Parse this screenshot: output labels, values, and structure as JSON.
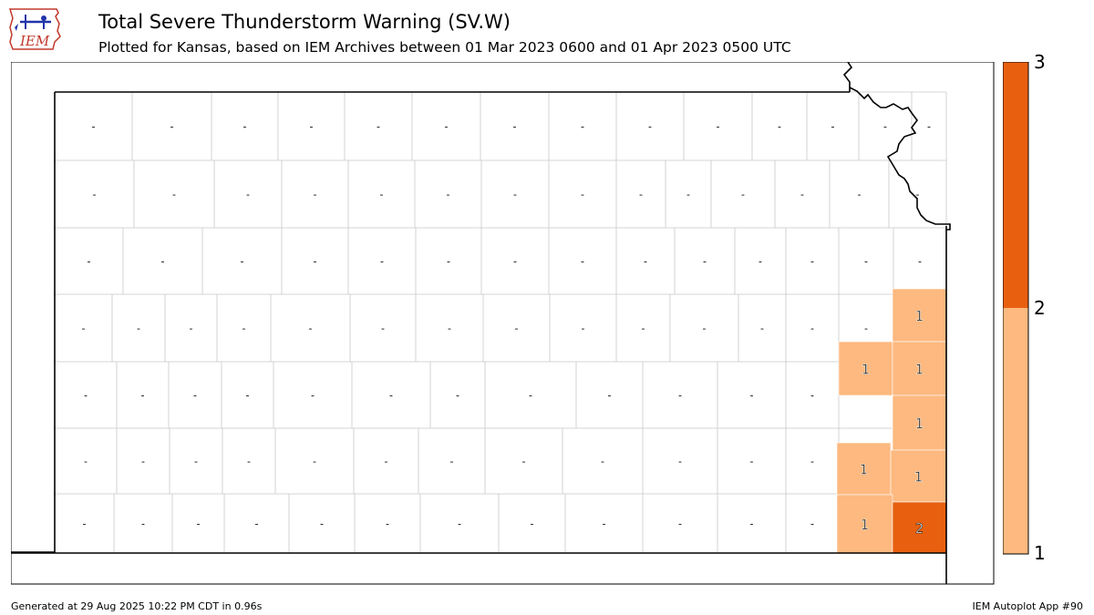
{
  "header": {
    "logo_text": "IEM",
    "title": "Total Severe Thunderstorm Warning (SV.W)",
    "subtitle": "Plotted for Kansas, based on IEM Archives  between 01 Mar 2023 0600 and 01 Apr 2023 0500 UTC"
  },
  "colorbar": {
    "ticks": [
      "3",
      "2",
      "1"
    ],
    "colors": {
      "low": "#fdb97f",
      "high": "#e8600f"
    }
  },
  "map": {
    "state": "Kansas",
    "no_data_label": "-",
    "counts": [
      "1",
      "1",
      "1",
      "1",
      "1",
      "1",
      "1",
      "2"
    ]
  },
  "colors": {
    "border": "#000000",
    "county_line": "#bdbdbd",
    "fill_1": "#fdb97f",
    "fill_2": "#e8600f"
  },
  "footer": {
    "generated": "Generated at 29 Aug 2025 10:22 PM CDT in 0.96s",
    "app": "IEM Autoplot App #90"
  }
}
